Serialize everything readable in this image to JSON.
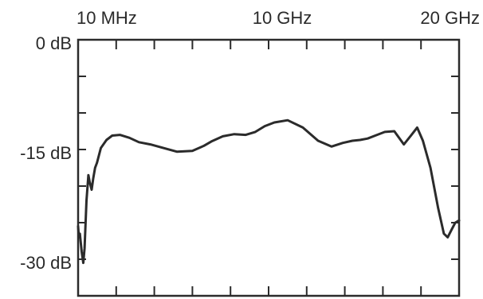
{
  "chart_data": {
    "type": "line",
    "title": "",
    "xlabel": "",
    "ylabel": "",
    "x_tick_labels": [
      "10 MHz",
      "10 GHz",
      "20 GHz"
    ],
    "y_tick_labels": [
      "0 dB",
      "-15 dB",
      "-30 dB"
    ],
    "y_unit": "dB",
    "xlim": [
      0.01,
      20
    ],
    "ylim": [
      -35,
      0
    ],
    "grid": false,
    "colors": {
      "line": "#2b2b2b",
      "frame": "#2b2b2b",
      "text": "#2a2a2a"
    },
    "series": [
      {
        "x": [
          0.01,
          0.05,
          0.1,
          0.2,
          0.28,
          0.35,
          0.45,
          0.55,
          0.62,
          0.72,
          0.8,
          0.9,
          1.0,
          1.2,
          1.5,
          1.8,
          2.2,
          2.7,
          3.2,
          3.8,
          4.5,
          5.2,
          6.0,
          6.6,
          7.0,
          7.6,
          8.2,
          8.8,
          9.3,
          9.8,
          10.3,
          11.0,
          11.8,
          12.6,
          13.3,
          13.9,
          14.4,
          14.8,
          15.2,
          15.6,
          16.1,
          16.6,
          17.1,
          17.5,
          17.8,
          18.1,
          18.5,
          18.9,
          19.2,
          19.4,
          19.6,
          19.8,
          20.0
        ],
        "y": [
          -25.5,
          -27.0,
          -26.5,
          -29.0,
          -30.5,
          -28.5,
          -22.0,
          -18.5,
          -19.5,
          -20.5,
          -19.0,
          -17.5,
          -16.8,
          -14.8,
          -13.7,
          -13.1,
          -13.0,
          -13.4,
          -14.0,
          -14.3,
          -14.8,
          -15.3,
          -15.2,
          -14.5,
          -13.9,
          -13.2,
          -12.9,
          -13.0,
          -12.6,
          -11.8,
          -11.3,
          -11.0,
          -12.0,
          -13.8,
          -14.6,
          -14.1,
          -13.8,
          -13.7,
          -13.5,
          -13.1,
          -12.6,
          -12.5,
          -14.3,
          -13.0,
          -12.0,
          -13.8,
          -17.5,
          -23.0,
          -26.5,
          -27.0,
          -26.0,
          -25.0,
          -24.7
        ]
      }
    ]
  }
}
